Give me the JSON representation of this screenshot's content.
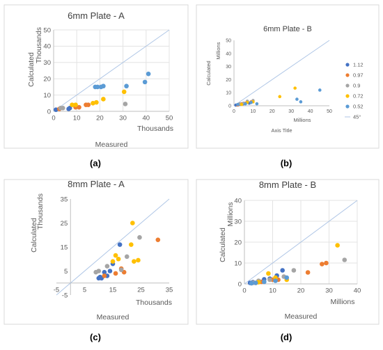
{
  "legend": {
    "entries": [
      "1.12",
      "0.97",
      "0.9",
      "0.72",
      "0.52"
    ],
    "line_entry": "45°",
    "colors": [
      "#4472C4",
      "#ED7D31",
      "#A5A5A5",
      "#FFC000",
      "#5B9BD5"
    ],
    "line_color": "#AFC6E6",
    "placement": "right of panel b"
  },
  "captions": [
    "(a)",
    "(b)",
    "(c)",
    "(d)"
  ],
  "chart_data": [
    {
      "type": "scatter",
      "title": "6mm Plate - A",
      "xlabel": "Measured",
      "x_unit": "Thousands",
      "ylabel": "Calculated",
      "y_unit": "Thousands",
      "xlim": [
        0,
        50
      ],
      "ylim": [
        0,
        50
      ],
      "xticks": [
        0,
        10,
        20,
        30,
        40,
        50
      ],
      "yticks": [
        0,
        10,
        20,
        30,
        40,
        50
      ],
      "grid": true,
      "reference_line": "45°",
      "series": [
        {
          "legend_index": 0,
          "points": [
            [
              1,
              1
            ],
            [
              6.5,
              1.5
            ],
            [
              7,
              2
            ]
          ]
        },
        {
          "legend_index": 1,
          "points": [
            [
              2.5,
              1.5
            ],
            [
              9.5,
              2.5
            ],
            [
              11,
              2.5
            ],
            [
              14,
              4
            ],
            [
              15,
              4
            ]
          ]
        },
        {
          "legend_index": 2,
          "points": [
            [
              3,
              2
            ],
            [
              4,
              2
            ],
            [
              31,
              4.5
            ]
          ]
        },
        {
          "legend_index": 3,
          "points": [
            [
              8,
              4
            ],
            [
              9.5,
              4
            ],
            [
              17,
              5
            ],
            [
              18.5,
              5.5
            ],
            [
              21.5,
              7.5
            ],
            [
              30.5,
              12
            ]
          ]
        },
        {
          "legend_index": 4,
          "points": [
            [
              18,
              15
            ],
            [
              19,
              15
            ],
            [
              20.5,
              15
            ],
            [
              21.5,
              15.5
            ],
            [
              31.5,
              15.5
            ],
            [
              39.5,
              18
            ],
            [
              41,
              23
            ]
          ]
        }
      ]
    },
    {
      "type": "scatter",
      "title": "6mm Plate - B",
      "xlabel": "Axis Title",
      "x_unit": "Millions",
      "ylabel": "Calculated",
      "y_unit": "Millions",
      "xlim": [
        0,
        50
      ],
      "ylim": [
        0,
        50
      ],
      "xticks": [
        0,
        10,
        20,
        30,
        40,
        50
      ],
      "yticks": [
        0,
        10,
        20,
        30,
        40,
        50
      ],
      "grid": false,
      "reference_line": "45°",
      "series": [
        {
          "legend_index": 0,
          "points": [
            [
              1,
              0.5
            ],
            [
              3,
              1
            ],
            [
              5,
              1.5
            ],
            [
              8,
              2
            ]
          ]
        },
        {
          "legend_index": 1,
          "points": [
            [
              2,
              0.5
            ],
            [
              4,
              1.5
            ],
            [
              6,
              2
            ],
            [
              9,
              3
            ]
          ]
        },
        {
          "legend_index": 2,
          "points": [
            [
              3,
              1.5
            ],
            [
              5,
              2
            ],
            [
              7,
              3.5
            ],
            [
              10,
              4
            ]
          ]
        },
        {
          "legend_index": 3,
          "points": [
            [
              4,
              1
            ],
            [
              7,
              2.5
            ],
            [
              10,
              3
            ],
            [
              24,
              7
            ],
            [
              32,
              13.5
            ]
          ]
        },
        {
          "legend_index": 4,
          "points": [
            [
              2,
              1
            ],
            [
              6,
              1.5
            ],
            [
              9,
              2.5
            ],
            [
              12,
              1.5
            ],
            [
              33,
              5
            ],
            [
              35,
              3
            ],
            [
              45,
              12
            ]
          ]
        }
      ]
    },
    {
      "type": "scatter",
      "title": "8mm Plate - A",
      "xlabel": "Measured",
      "x_unit": "Thousands",
      "ylabel": "Calculated",
      "y_unit": "Thousands",
      "xlim": [
        -5,
        35
      ],
      "ylim": [
        -5,
        35
      ],
      "xticks": [
        -5,
        5,
        15,
        25,
        35
      ],
      "yticks": [
        -5,
        5,
        15,
        25,
        35
      ],
      "grid": false,
      "reference_line": "45°",
      "series": [
        {
          "legend_index": 0,
          "points": [
            [
              10,
              2
            ],
            [
              10.5,
              2.5
            ],
            [
              11,
              2
            ],
            [
              12,
              4.5
            ],
            [
              13,
              3
            ],
            [
              14,
              5
            ],
            [
              15,
              8
            ],
            [
              17.5,
              16
            ]
          ]
        },
        {
          "legend_index": 1,
          "points": [
            [
              12,
              3
            ],
            [
              16,
              4
            ],
            [
              18,
              6
            ],
            [
              19,
              4.5
            ],
            [
              31,
              18
            ]
          ]
        },
        {
          "legend_index": 2,
          "points": [
            [
              9,
              4.5
            ],
            [
              10,
              5
            ],
            [
              13,
              7
            ],
            [
              18,
              5.5
            ],
            [
              20,
              11
            ],
            [
              24.5,
              19
            ]
          ]
        },
        {
          "legend_index": 3,
          "points": [
            [
              15,
              9
            ],
            [
              16,
              11.5
            ],
            [
              17,
              10
            ],
            [
              21.5,
              16
            ],
            [
              22,
              25
            ],
            [
              22.5,
              9
            ],
            [
              24,
              9.5
            ]
          ]
        }
      ]
    },
    {
      "type": "scatter",
      "title": "8mm Plate - B",
      "xlabel": "Measured",
      "x_unit": "Millions",
      "ylabel": "Calculated",
      "y_unit": "Millions",
      "xlim": [
        0,
        40
      ],
      "ylim": [
        0,
        40
      ],
      "xticks": [
        0,
        10,
        20,
        30,
        40
      ],
      "yticks": [
        0,
        10,
        20,
        30,
        40
      ],
      "grid": true,
      "reference_line": "45°",
      "series": [
        {
          "legend_index": 0,
          "points": [
            [
              2,
              0.5
            ],
            [
              3,
              0.8
            ],
            [
              5,
              1.2
            ],
            [
              7,
              2.2
            ],
            [
              9,
              2.5
            ],
            [
              11.5,
              4
            ],
            [
              13.5,
              6.5
            ]
          ]
        },
        {
          "legend_index": 1,
          "points": [
            [
              4,
              0.5
            ],
            [
              6,
              1
            ],
            [
              10,
              2
            ],
            [
              12,
              2
            ],
            [
              22.5,
              5.5
            ],
            [
              27.5,
              9.5
            ],
            [
              29,
              10
            ]
          ]
        },
        {
          "legend_index": 2,
          "points": [
            [
              3,
              0.5
            ],
            [
              5,
              1.5
            ],
            [
              9,
              2
            ],
            [
              14,
              3.5
            ],
            [
              17.5,
              6.5
            ],
            [
              35.5,
              11.5
            ]
          ]
        },
        {
          "legend_index": 3,
          "points": [
            [
              5,
              0.8
            ],
            [
              8.5,
              5
            ],
            [
              11,
              3
            ],
            [
              15,
              2
            ],
            [
              33,
              18.5
            ]
          ]
        },
        {
          "legend_index": 4,
          "points": [
            [
              2.5,
              0.3
            ],
            [
              4,
              0.5
            ],
            [
              7,
              1
            ],
            [
              11,
              1.5
            ],
            [
              15,
              3
            ]
          ]
        }
      ]
    }
  ]
}
